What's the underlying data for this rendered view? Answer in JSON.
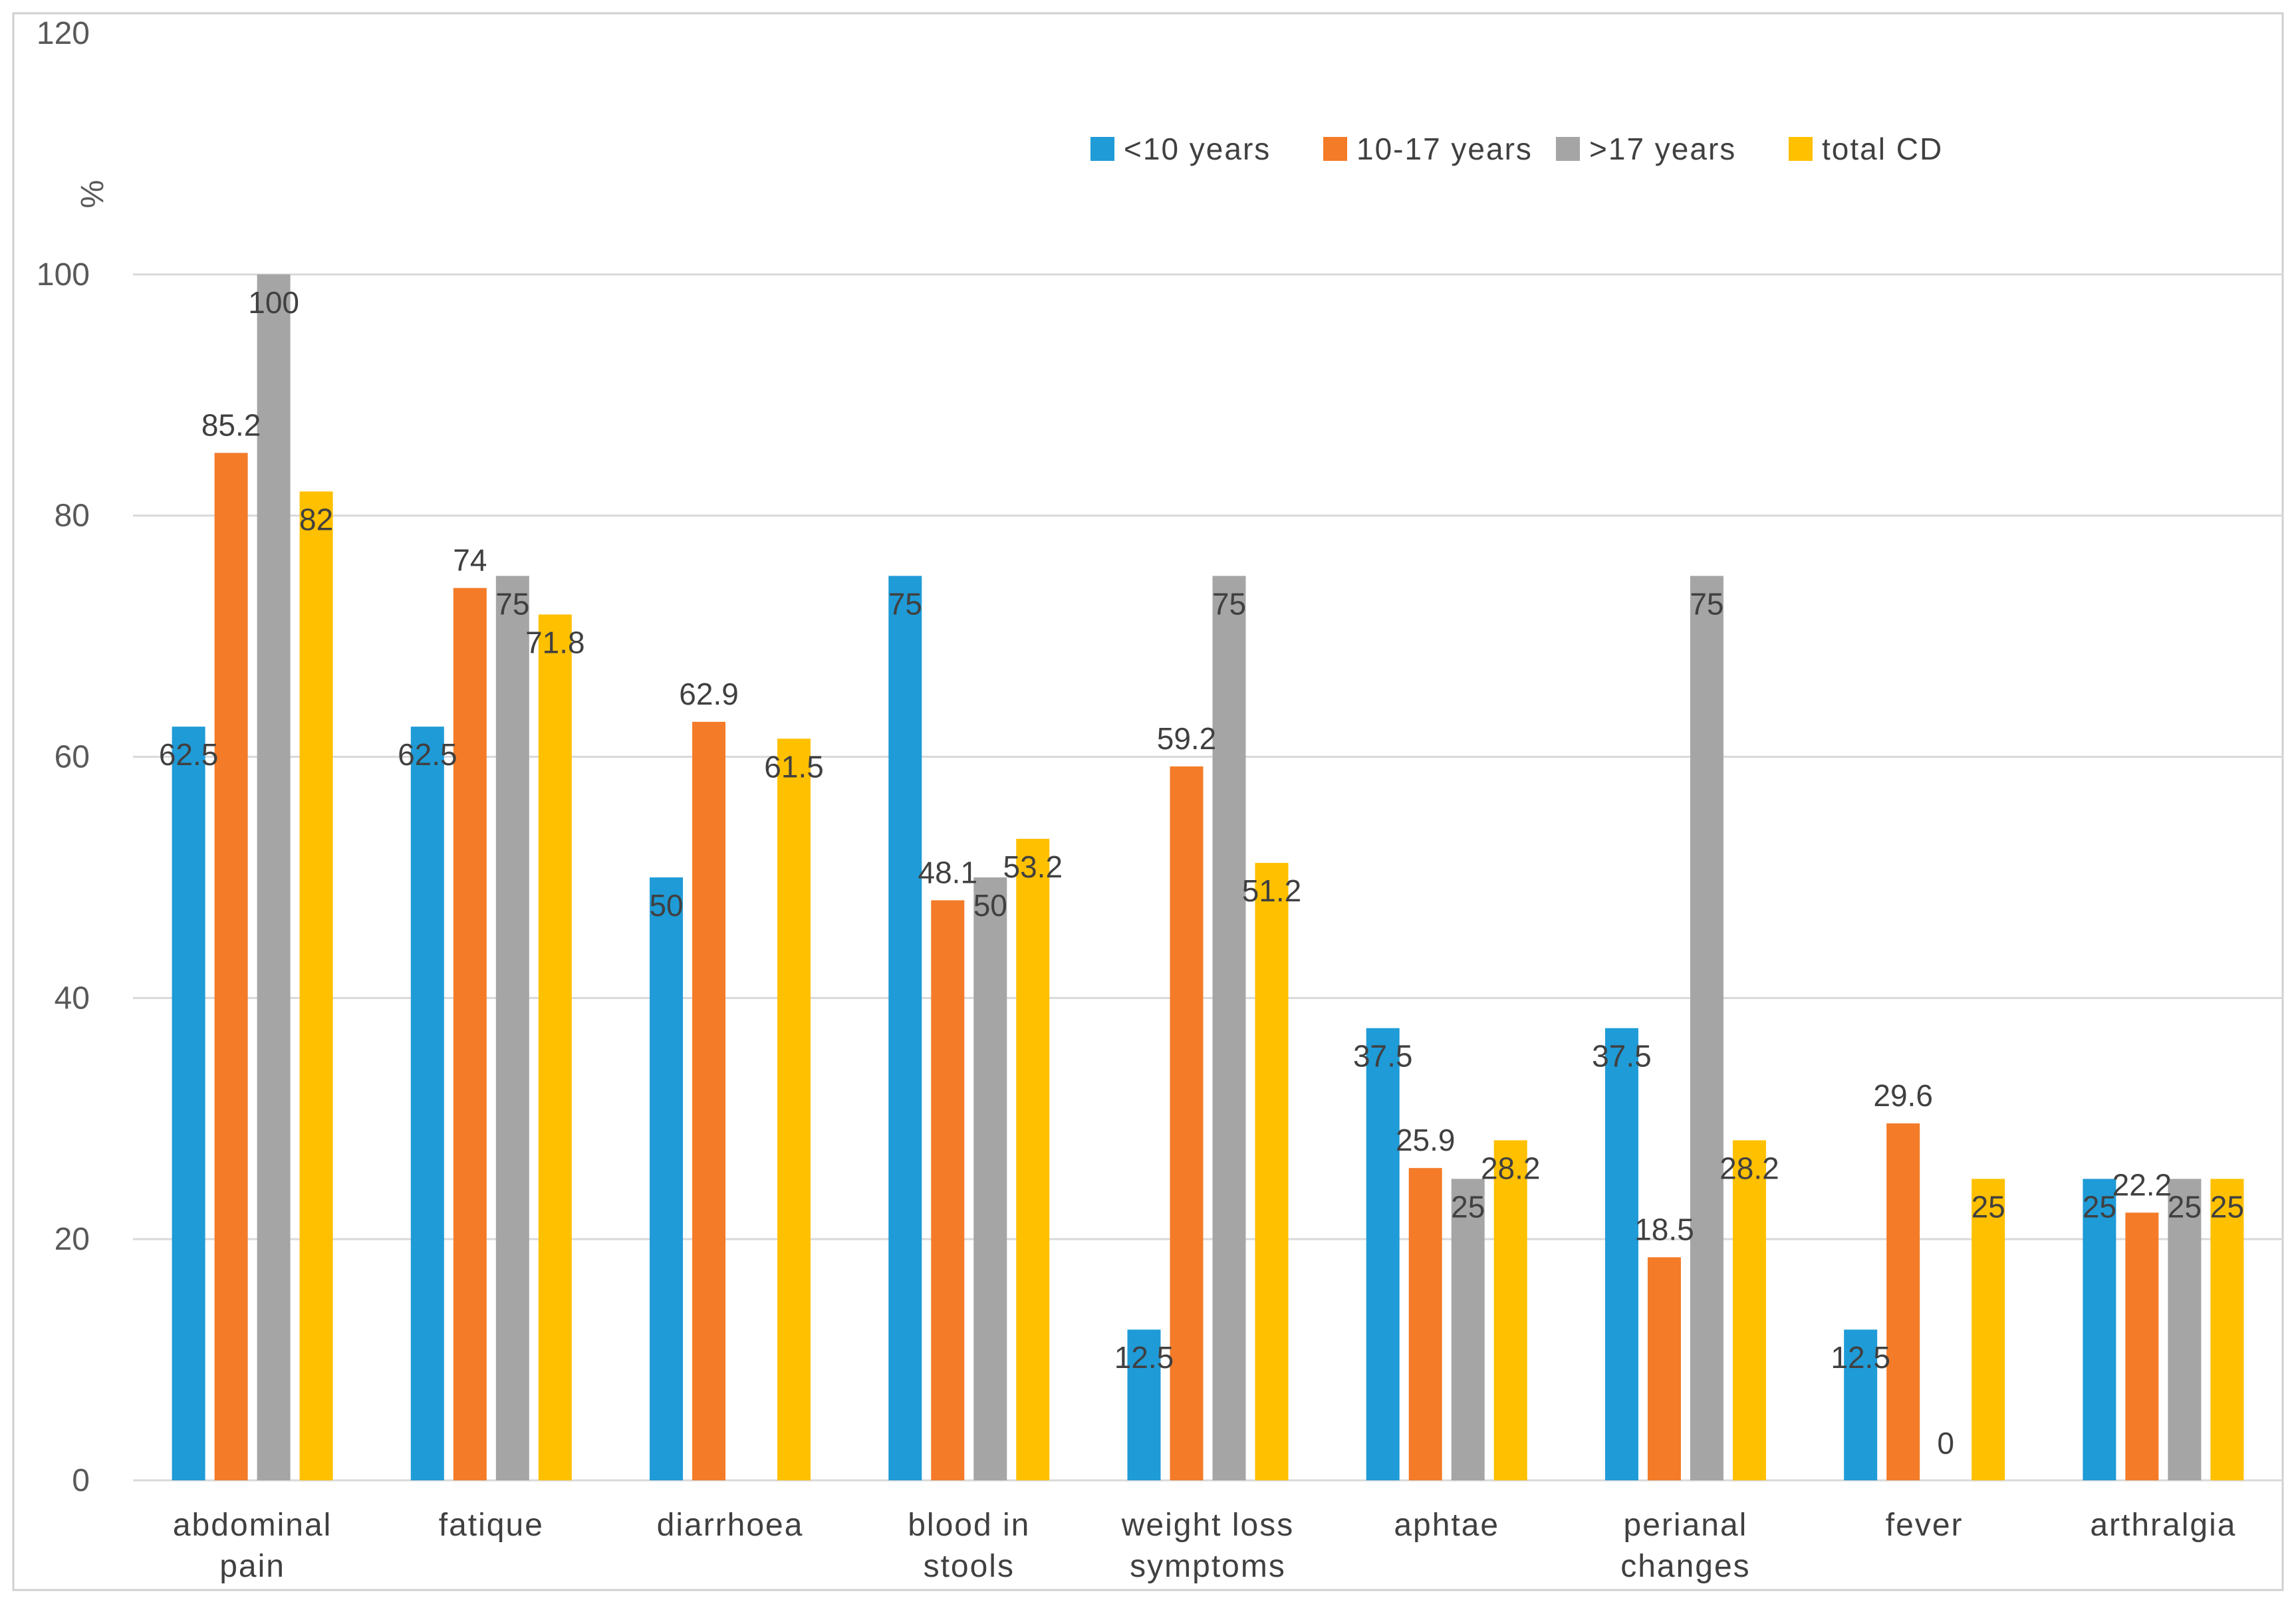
{
  "chart_data": {
    "type": "bar",
    "title": "",
    "xlabel": "",
    "ylabel": "%",
    "ylim": [
      0,
      120
    ],
    "yticks": [
      0,
      20,
      40,
      60,
      80,
      100,
      120
    ],
    "grid": true,
    "legend_position": "top-right",
    "categories": [
      [
        "abdominal",
        "pain"
      ],
      [
        "fatique"
      ],
      [
        "diarrhoea"
      ],
      [
        "blood in",
        "stools"
      ],
      [
        "weight loss",
        "symptoms"
      ],
      [
        "aphtae"
      ],
      [
        "perianal",
        "changes"
      ],
      [
        "fever"
      ],
      [
        "arthralgia"
      ]
    ],
    "series": [
      {
        "name": "<10 years",
        "color": "#1F9BD7",
        "values": [
          62.5,
          62.5,
          50,
          75,
          12.5,
          37.5,
          37.5,
          12.5,
          25
        ]
      },
      {
        "name": "10-17 years",
        "color": "#F47B28",
        "values": [
          85.2,
          74,
          62.9,
          48.1,
          59.2,
          25.9,
          18.5,
          29.6,
          22.2
        ]
      },
      {
        "name": ">17 years",
        "color": "#A5A5A5",
        "values": [
          100,
          75,
          null,
          50,
          75,
          25,
          75,
          0,
          25
        ]
      },
      {
        "name": "total CD",
        "color": "#FFC000",
        "values": [
          82,
          71.8,
          61.5,
          53.2,
          51.2,
          28.2,
          28.2,
          25,
          25
        ]
      }
    ]
  }
}
